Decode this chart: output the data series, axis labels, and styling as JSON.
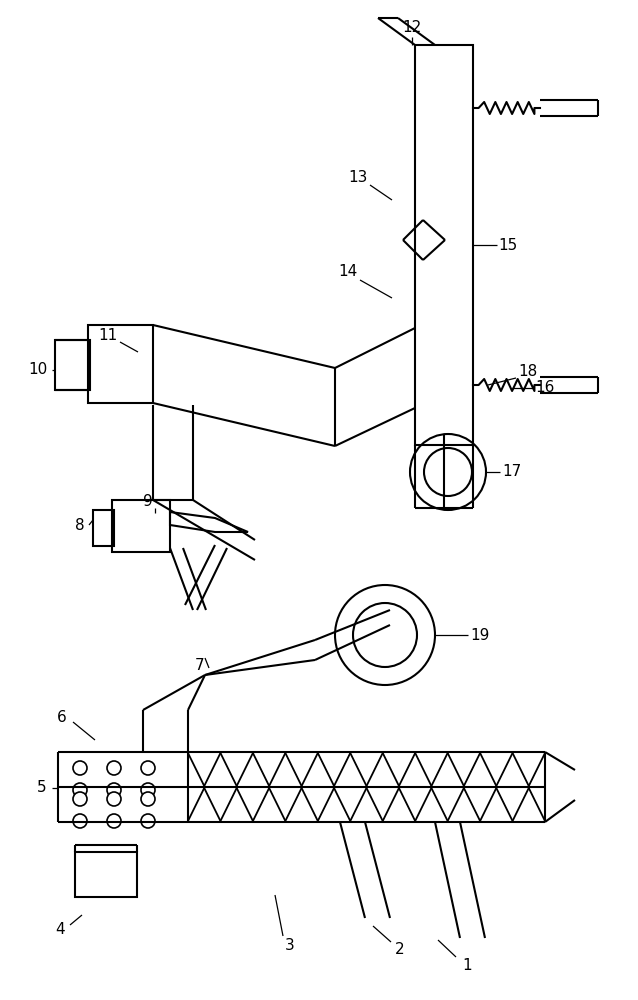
{
  "bg": "#ffffff",
  "lc": "#000000",
  "lw": 1.5,
  "figsize": [
    6.38,
    10.0
  ],
  "dpi": 100
}
